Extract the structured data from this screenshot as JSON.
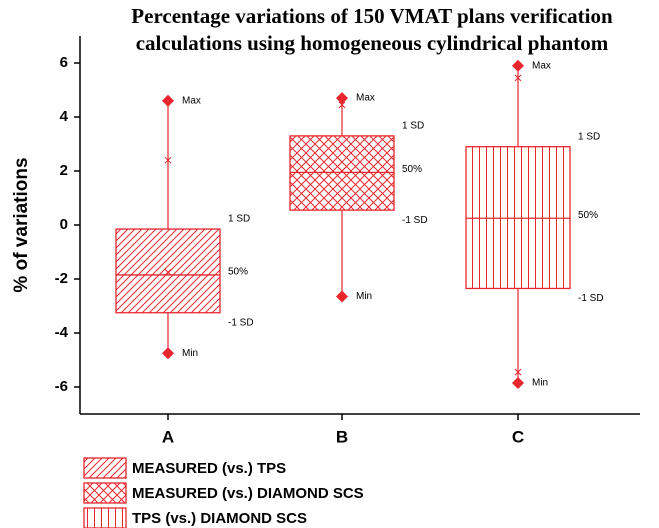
{
  "chart_data": {
    "type": "box",
    "title": [
      "Percentage variations of 150 VMAT plans verification",
      "calculations using homogeneous cylindrical phantom"
    ],
    "y_label": "% of variations",
    "categories": [
      "A",
      "B",
      "C"
    ],
    "ylim": [
      -7,
      7
    ],
    "yticks": [
      -6,
      -4,
      -2,
      0,
      2,
      4,
      6
    ],
    "annotations": {
      "max": "Max",
      "min": "Min",
      "sd_upper": "1 SD",
      "sd_lower": "-1 SD",
      "median": "50%"
    },
    "series": [
      {
        "name": "MEASURED (vs.) TPS",
        "color": "#e8262d",
        "pattern": "diagonal",
        "max": 4.6,
        "min": -4.75,
        "sd_upper": -0.15,
        "sd_lower": -3.25,
        "median": -1.85,
        "crosses": [
          2.4,
          -1.75
        ]
      },
      {
        "name": "MEASURED (vs.) DIAMOND SCS",
        "color": "#e8262d",
        "pattern": "crosshatch",
        "max": 4.7,
        "min": -2.65,
        "sd_upper": 3.3,
        "sd_lower": 0.55,
        "median": 1.95,
        "crosses": [
          4.45,
          2.0
        ]
      },
      {
        "name": "TPS (vs.) DIAMOND SCS",
        "color": "#e8262d",
        "pattern": "vertical",
        "max": 5.9,
        "min": -5.85,
        "sd_upper": 2.9,
        "sd_lower": -2.35,
        "median": 0.25,
        "crosses": [
          5.45,
          -5.45
        ]
      }
    ]
  }
}
